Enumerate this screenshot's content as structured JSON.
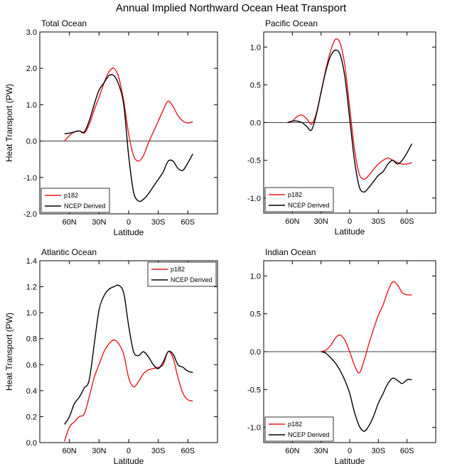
{
  "figure_title": "Annual Implied Northward Ocean Heat Transport",
  "colors": {
    "model": "#e8191c",
    "obs": "#000000"
  },
  "chart_data": [
    {
      "type": "line",
      "title": "Total Ocean",
      "xlabel": "Latitude",
      "ylabel": "Heat Transport (PW)",
      "xlim": [
        90,
        -90
      ],
      "ylim": [
        -2.0,
        3.0
      ],
      "xticks": [
        60,
        30,
        0,
        -30,
        -60
      ],
      "xtick_labels": [
        "60N",
        "30N",
        "0",
        "30S",
        "60S"
      ],
      "yticks": [
        -2.0,
        -1.0,
        0.0,
        1.0,
        2.0,
        3.0
      ],
      "ytick_labels": [
        "-2.0",
        "-1.0",
        "0.0",
        "1.0",
        "2.0",
        "3.0"
      ],
      "legend": {
        "position": "bottom-left"
      },
      "series": [
        {
          "name": "p182",
          "color": "#e8191c",
          "x": [
            65,
            60,
            55,
            50,
            45,
            40,
            35,
            30,
            25,
            20,
            15,
            10,
            5,
            0,
            -5,
            -10,
            -15,
            -20,
            -25,
            -30,
            -35,
            -40,
            -45,
            -50,
            -55,
            -60,
            -65
          ],
          "y": [
            0.0,
            0.15,
            0.25,
            0.28,
            0.22,
            0.45,
            0.85,
            1.2,
            1.6,
            1.9,
            2.0,
            1.75,
            1.1,
            0.2,
            -0.4,
            -0.55,
            -0.4,
            -0.05,
            0.25,
            0.55,
            0.85,
            1.1,
            0.95,
            0.7,
            0.55,
            0.5,
            0.53
          ]
        },
        {
          "name": "NCEP Derived",
          "color": "#000000",
          "x": [
            65,
            60,
            55,
            50,
            45,
            40,
            35,
            30,
            25,
            20,
            15,
            10,
            5,
            0,
            -5,
            -10,
            -15,
            -20,
            -25,
            -30,
            -35,
            -40,
            -45,
            -50,
            -55,
            -60,
            -65
          ],
          "y": [
            0.2,
            0.22,
            0.25,
            0.28,
            0.25,
            0.55,
            1.0,
            1.4,
            1.6,
            1.8,
            1.8,
            1.55,
            1.0,
            -0.4,
            -1.4,
            -1.65,
            -1.6,
            -1.45,
            -1.25,
            -1.05,
            -0.85,
            -0.55,
            -0.55,
            -0.75,
            -0.8,
            -0.6,
            -0.35
          ]
        }
      ]
    },
    {
      "type": "line",
      "title": "Pacific Ocean",
      "xlabel": "Latitude",
      "ylabel": "",
      "xlim": [
        90,
        -90
      ],
      "ylim": [
        -1.2,
        1.2
      ],
      "xticks": [
        60,
        30,
        0,
        -30,
        -60
      ],
      "xtick_labels": [
        "60N",
        "30N",
        "0",
        "30S",
        "60S"
      ],
      "yticks": [
        -1.0,
        -0.5,
        0.0,
        0.5,
        1.0
      ],
      "ytick_labels": [
        "-1.0",
        "-0.5",
        "0.0",
        "0.5",
        "1.0"
      ],
      "legend": {
        "position": "bottom-left"
      },
      "series": [
        {
          "name": "p182",
          "color": "#e8191c",
          "x": [
            65,
            60,
            55,
            50,
            45,
            40,
            35,
            30,
            25,
            20,
            15,
            10,
            5,
            0,
            -5,
            -10,
            -15,
            -20,
            -25,
            -30,
            -35,
            -40,
            -45,
            -50,
            -55,
            -60,
            -65
          ],
          "y": [
            0.0,
            0.02,
            0.08,
            0.1,
            0.05,
            -0.02,
            0.12,
            0.4,
            0.7,
            0.95,
            1.1,
            1.05,
            0.75,
            0.2,
            -0.35,
            -0.68,
            -0.75,
            -0.7,
            -0.62,
            -0.55,
            -0.5,
            -0.47,
            -0.5,
            -0.53,
            -0.55,
            -0.55,
            -0.53
          ]
        },
        {
          "name": "NCEP Derived",
          "color": "#000000",
          "x": [
            65,
            60,
            55,
            50,
            45,
            40,
            35,
            30,
            25,
            20,
            15,
            10,
            5,
            0,
            -5,
            -10,
            -15,
            -20,
            -25,
            -30,
            -35,
            -40,
            -45,
            -50,
            -55,
            -60,
            -65
          ],
          "y": [
            0.0,
            0.02,
            0.02,
            0.0,
            -0.05,
            -0.1,
            0.1,
            0.4,
            0.68,
            0.88,
            0.96,
            0.9,
            0.6,
            0.05,
            -0.5,
            -0.85,
            -0.92,
            -0.86,
            -0.78,
            -0.7,
            -0.65,
            -0.55,
            -0.5,
            -0.55,
            -0.5,
            -0.4,
            -0.28
          ]
        }
      ]
    },
    {
      "type": "line",
      "title": "Atlantic Ocean",
      "xlabel": "Latitude",
      "ylabel": "Heat Transport (PW)",
      "xlim": [
        90,
        -90
      ],
      "ylim": [
        0.0,
        1.4
      ],
      "xticks": [
        60,
        30,
        0,
        -30,
        -60
      ],
      "xtick_labels": [
        "60N",
        "30N",
        "0",
        "30S",
        "60S"
      ],
      "yticks": [
        0.0,
        0.2,
        0.4,
        0.6,
        0.8,
        1.0,
        1.2,
        1.4
      ],
      "ytick_labels": [
        "0.0",
        "0.2",
        "0.4",
        "0.6",
        "0.8",
        "1.0",
        "1.2",
        "1.4"
      ],
      "legend": {
        "position": "top-right"
      },
      "series": [
        {
          "name": "p182",
          "color": "#e8191c",
          "x": [
            65,
            60,
            55,
            50,
            45,
            40,
            35,
            30,
            25,
            20,
            15,
            10,
            5,
            0,
            -5,
            -10,
            -15,
            -20,
            -25,
            -30,
            -35,
            -40,
            -45,
            -50,
            -55,
            -60,
            -65
          ],
          "y": [
            0.01,
            0.12,
            0.16,
            0.2,
            0.22,
            0.35,
            0.5,
            0.6,
            0.7,
            0.76,
            0.79,
            0.76,
            0.68,
            0.5,
            0.43,
            0.47,
            0.53,
            0.56,
            0.57,
            0.58,
            0.6,
            0.7,
            0.65,
            0.5,
            0.38,
            0.33,
            0.32
          ]
        },
        {
          "name": "NCEP Derived",
          "color": "#000000",
          "x": [
            65,
            60,
            55,
            50,
            45,
            40,
            35,
            30,
            25,
            20,
            15,
            10,
            5,
            0,
            -5,
            -10,
            -15,
            -20,
            -25,
            -30,
            -35,
            -40,
            -45,
            -50,
            -55,
            -60,
            -65
          ],
          "y": [
            0.14,
            0.2,
            0.3,
            0.35,
            0.42,
            0.48,
            0.75,
            1.02,
            1.13,
            1.18,
            1.2,
            1.21,
            1.15,
            0.9,
            0.7,
            0.67,
            0.7,
            0.66,
            0.6,
            0.57,
            0.62,
            0.7,
            0.68,
            0.6,
            0.58,
            0.55,
            0.54
          ]
        }
      ]
    },
    {
      "type": "line",
      "title": "Indian Ocean",
      "xlabel": "Latitude",
      "ylabel": "",
      "xlim": [
        90,
        -90
      ],
      "ylim": [
        -1.2,
        1.2
      ],
      "xticks": [
        60,
        30,
        0,
        -30,
        -60
      ],
      "xtick_labels": [
        "60N",
        "30N",
        "0",
        "30S",
        "60S"
      ],
      "yticks": [
        -1.0,
        -0.5,
        0.0,
        0.5,
        1.0
      ],
      "ytick_labels": [
        "-1.0",
        "-0.5",
        "0.0",
        "0.5",
        "1.0"
      ],
      "legend": {
        "position": "bottom-left"
      },
      "series": [
        {
          "name": "p182",
          "color": "#e8191c",
          "x": [
            30,
            25,
            20,
            15,
            10,
            5,
            0,
            -5,
            -10,
            -15,
            -20,
            -25,
            -30,
            -35,
            -40,
            -45,
            -50,
            -55,
            -60,
            -65
          ],
          "y": [
            0.0,
            0.02,
            0.08,
            0.18,
            0.22,
            0.15,
            0.0,
            -0.18,
            -0.28,
            -0.12,
            0.1,
            0.3,
            0.48,
            0.62,
            0.8,
            0.92,
            0.88,
            0.78,
            0.75,
            0.75
          ]
        },
        {
          "name": "NCEP Derived",
          "color": "#000000",
          "x": [
            30,
            25,
            20,
            15,
            10,
            5,
            0,
            -5,
            -10,
            -15,
            -20,
            -25,
            -30,
            -35,
            -40,
            -45,
            -50,
            -55,
            -60,
            -65
          ],
          "y": [
            0.0,
            -0.02,
            -0.08,
            -0.15,
            -0.25,
            -0.38,
            -0.55,
            -0.8,
            -0.98,
            -1.05,
            -0.98,
            -0.85,
            -0.68,
            -0.55,
            -0.42,
            -0.35,
            -0.38,
            -0.42,
            -0.37,
            -0.37
          ]
        }
      ]
    }
  ]
}
